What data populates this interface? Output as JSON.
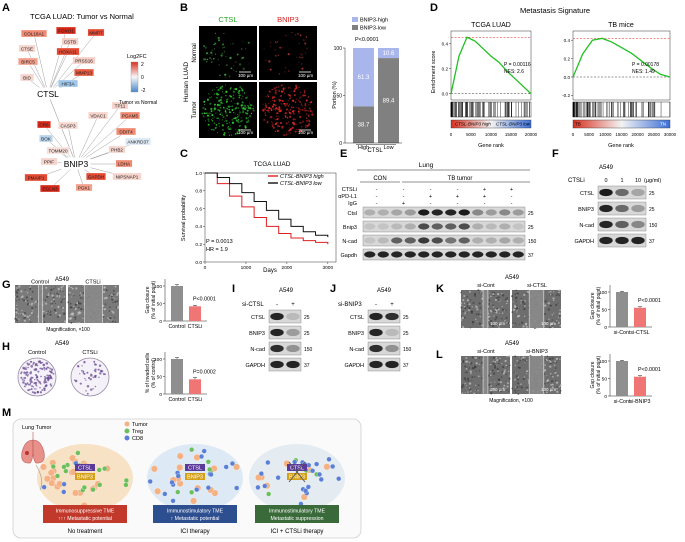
{
  "panels": {
    "A": {
      "letter": "A",
      "title": "TCGA LUAD: Tumor vs Normal",
      "legend_title": "Log2FC",
      "legend_max": "2",
      "legend_zero": "0",
      "legend_min": "-2",
      "legend_caption": "Tumor vs Normal",
      "hub1": "CTSL",
      "hub2": "BNIP3",
      "genes1": [
        "COL18A1",
        "FOXO1",
        "CSTB",
        "MMP7",
        "CTSE",
        "HOXA11",
        "BIRC5",
        "PRSS16",
        "MMP13",
        "BID",
        "HIF3A"
      ],
      "genes2": [
        "TP11",
        "VDAC1",
        "PGAM5",
        "CR6",
        "CASP3",
        "DDIT4",
        "BOK",
        "ANKRD37",
        "PHB2",
        "TOMM20",
        "PPIF",
        "LDHA",
        "GAPDH",
        "NIPSNAP1",
        "PMAIP1",
        "EGLN3",
        "PGK1"
      ]
    },
    "B": {
      "letter": "B",
      "col1": "CTSL",
      "col2": "BNIP3",
      "row1": "Normal",
      "row2": "Tumor",
      "row_group": "Human LUAD",
      "scalebar": "100 µm",
      "legend_high": "BNIP3-high",
      "legend_low": "BNIP3-low",
      "pvalue": "P<0.0001",
      "ylabel": "Portion (%)",
      "xcat1": "High",
      "xcat2": "Low",
      "xgroup": "CTSL",
      "yticks": [
        "0",
        "50",
        "100"
      ]
    },
    "C": {
      "letter": "C",
      "title": "TCGA LUAD",
      "legend_high": "CTSL-BNIP3 high",
      "legend_low": "CTSL-BNIP3 low",
      "stat_p": "P = 0.0013",
      "stat_hr": "HR = 1.9",
      "ylabel": "Survival probability",
      "xlabel": "Days",
      "yticks": [
        "1.0",
        "0.8",
        "0.6",
        "0.4",
        "0.2",
        "0.0"
      ],
      "xticks": [
        "0",
        "1000",
        "2000",
        "3000"
      ]
    },
    "D": {
      "letter": "D",
      "header": "Metastasis Signature",
      "left_title": "TCGA LUAD",
      "right_title": "TB mice",
      "left_p": "P = 0.00116",
      "left_nes": "NES: 2.6",
      "right_p": "P = 0.00178",
      "right_nes": "NES: 1.49",
      "ylabel": "Enrichment score",
      "xlabel": "Gene rank",
      "left_bar_high": "CTSL-BNIP3 high",
      "left_bar_low": "CTSL-BNIP3 low",
      "right_bar_left": "TB",
      "right_bar_right": "TN",
      "left_yticks": [
        "0.4",
        "0.2",
        "0.0"
      ],
      "right_yticks": [
        "0.4",
        "0.2",
        "0.0",
        "-0.2"
      ],
      "left_xticks": [
        "0",
        "5000",
        "10000",
        "15000",
        "20000"
      ],
      "right_xticks": [
        "0",
        "5000",
        "10000",
        "15000",
        "20000",
        "25000",
        "30000"
      ]
    },
    "E": {
      "letter": "E",
      "group_lung": "Lung",
      "group_con": "CON",
      "group_tb": "TB tumor",
      "row_labels": [
        "CTSLi",
        "αPD-L1",
        "IgG"
      ],
      "row_values": [
        [
          "-",
          "-",
          "-",
          "-",
          "+",
          "+"
        ],
        [
          "-",
          "-",
          "+",
          "+",
          "+",
          "-"
        ],
        [
          "-",
          "+",
          "-",
          "-",
          "-",
          "-"
        ]
      ],
      "bands": [
        "Ctsl",
        "Bnip3",
        "N-cad",
        "Gapdh"
      ],
      "mw": [
        "25",
        "25",
        "150",
        "37"
      ]
    },
    "F": {
      "letter": "F",
      "cell": "A549",
      "treat": "CTSLi",
      "doses": [
        "0",
        "1",
        "10"
      ],
      "unit": "(µg/ml)",
      "bands": [
        "CTSL",
        "BNIP3",
        "N-cad",
        "GAPDH"
      ],
      "mw": [
        "25",
        "25",
        "150",
        "37"
      ]
    },
    "G": {
      "letter": "G",
      "cell": "A549",
      "img1": "Control",
      "img2": "CTSLi",
      "magnification": "Magnification, ×100",
      "pvalue": "P<0.0001",
      "ylabel": "Gap closure (% of initial point)",
      "xcat1": "Control",
      "xcat2": "CTSLi",
      "yticks": [
        "0",
        "50",
        "100"
      ]
    },
    "H": {
      "letter": "H",
      "cell": "A549",
      "img1": "Control",
      "img2": "CTSLi",
      "pvalue": "P=0.0002",
      "ylabel": "% of invaded cells (% of control)",
      "xcat1": "Control",
      "xcat2": "CTSLi",
      "yticks": [
        "0",
        "50",
        "100"
      ]
    },
    "I": {
      "letter": "I",
      "cell": "A549",
      "treat": "si-CTSL",
      "signs": [
        "-",
        "+"
      ],
      "bands": [
        "CTSL",
        "BNIP3",
        "N-cad",
        "GAPDH"
      ],
      "mw": [
        "25",
        "25",
        "150",
        "37"
      ]
    },
    "J": {
      "letter": "J",
      "cell": "A549",
      "treat": "si-BNIP3",
      "signs": [
        "-",
        "+"
      ],
      "bands": [
        "CTSL",
        "BNIP3",
        "N-cad",
        "GAPDH"
      ],
      "mw": [
        "25",
        "25",
        "150",
        "37"
      ]
    },
    "K": {
      "letter": "K",
      "cell": "A549",
      "img1": "si-Cont",
      "img2": "si-CTSL",
      "scalebar": "100 µm",
      "pvalue": "P<0.0001",
      "ylabel": "Gap closure (% of initial point)",
      "xcat1": "si-Cont",
      "xcat2": "si-CTSL",
      "yticks": [
        "0",
        "50",
        "100"
      ]
    },
    "L": {
      "letter": "L",
      "cell": "A549",
      "img1": "si-Cont",
      "img2": "si-BNIP3",
      "scalebar": "100 µm",
      "magnification": "Magnification, ×100",
      "pvalue": "P<0.0001",
      "ylabel": "Gap closure (% of initial point)",
      "xcat1": "si-Cont",
      "xcat2": "si-BNIP3",
      "yticks": [
        "0",
        "50",
        "100"
      ]
    },
    "M": {
      "letter": "M",
      "organ": "Lung Tumor",
      "leg_tumor": "Tumor",
      "leg_treg": "Treg",
      "leg_cd8": "CD8",
      "hub1": "CTSL",
      "hub2": "BNIP3",
      "s1_box": "Immunosuppressive TME",
      "s1_box2": "↑↑↑ Metastatic potential",
      "s1_label": "No treatment",
      "s2_box": "Immunostimulatory TME",
      "s2_box2": "↑ Metastatic potential",
      "s2_label": "ICI therapy",
      "s3_box": "Immunostimulatory TME",
      "s3_box2": "Metastatic suppression",
      "s3_label": "ICI + CTSLi therapy"
    }
  },
  "chart_data": [
    {
      "type": "bar",
      "panel": "B",
      "categories": [
        "High",
        "Low"
      ],
      "series": [
        {
          "name": "BNIP3-high",
          "values": [
            61.3,
            10.6
          ]
        },
        {
          "name": "BNIP3-low",
          "values": [
            38.7,
            89.4
          ]
        }
      ],
      "ylabel": "Portion (%)",
      "ylim": [
        0,
        100
      ]
    },
    {
      "type": "line",
      "panel": "C",
      "series": [
        {
          "name": "CTSL-BNIP3 high",
          "x": [
            0,
            300,
            600,
            900,
            1200,
            1500,
            1800,
            2100,
            2400,
            2700,
            3000
          ],
          "y": [
            1.0,
            0.88,
            0.74,
            0.62,
            0.5,
            0.4,
            0.32,
            0.27,
            0.24,
            0.22,
            0.2
          ]
        },
        {
          "name": "CTSL-BNIP3 low",
          "x": [
            0,
            300,
            600,
            900,
            1200,
            1500,
            1800,
            2100,
            2400,
            2700,
            3000
          ],
          "y": [
            1.0,
            0.95,
            0.88,
            0.78,
            0.68,
            0.58,
            0.48,
            0.4,
            0.34,
            0.3,
            0.28
          ]
        }
      ],
      "xlabel": "Days",
      "ylabel": "Survival probability",
      "ylim": [
        0,
        1
      ]
    },
    {
      "type": "line",
      "panel": "D-left",
      "x": [
        0,
        2000,
        4000,
        6000,
        8000,
        10000,
        12000,
        14000,
        16000,
        18000,
        20000
      ],
      "y": [
        0,
        0.3,
        0.45,
        0.42,
        0.36,
        0.3,
        0.25,
        0.18,
        0.12,
        0.06,
        0
      ],
      "ylabel": "Enrichment score",
      "xlabel": "Gene rank"
    },
    {
      "type": "line",
      "panel": "D-right",
      "x": [
        0,
        3000,
        6000,
        9000,
        12000,
        15000,
        18000,
        21000,
        24000,
        27000,
        30000
      ],
      "y": [
        0,
        0.25,
        0.4,
        0.42,
        0.38,
        0.32,
        0.26,
        0.18,
        0.1,
        0.03,
        0
      ],
      "ylabel": "Enrichment score",
      "xlabel": "Gene rank"
    },
    {
      "type": "bar",
      "panel": "G",
      "categories": [
        "Control",
        "CTSLi"
      ],
      "values": [
        100,
        42
      ],
      "ylim": [
        0,
        120
      ]
    },
    {
      "type": "bar",
      "panel": "H",
      "categories": [
        "Control",
        "CTSLi"
      ],
      "values": [
        100,
        42
      ],
      "ylim": [
        0,
        120
      ]
    },
    {
      "type": "bar",
      "panel": "K",
      "categories": [
        "si-Cont",
        "si-CTSL"
      ],
      "values": [
        100,
        55
      ],
      "ylim": [
        0,
        120
      ]
    },
    {
      "type": "bar",
      "panel": "L",
      "categories": [
        "si-Cont",
        "si-BNIP3"
      ],
      "values": [
        100,
        55
      ],
      "ylim": [
        0,
        120
      ]
    }
  ]
}
